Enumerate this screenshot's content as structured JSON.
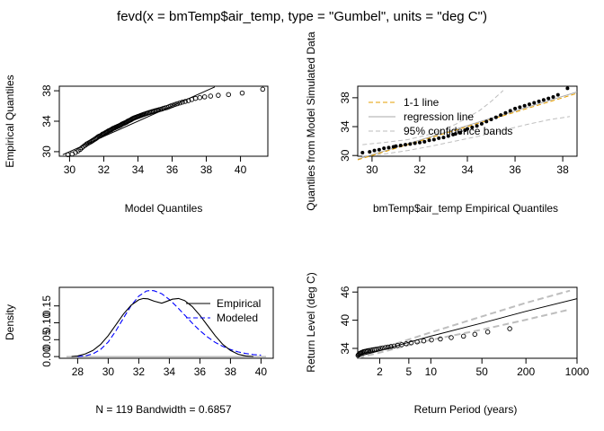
{
  "figure": {
    "title": "fevd(x = bmTemp$air_temp, type = \"Gumbel\", units = \"deg C\")"
  },
  "chart_data": [
    {
      "id": "qq1",
      "type": "scatter",
      "title": "",
      "xlabel": "Model Quantiles",
      "ylabel": "Empirical Quantiles",
      "xlim": [
        29.4,
        41.6
      ],
      "ylim": [
        29.4,
        38.6
      ],
      "xticks": [
        "30",
        "32",
        "34",
        "36",
        "38",
        "40"
      ],
      "yticks": [
        "30",
        "34",
        "38"
      ],
      "marker": "open-circle",
      "x": [
        29.9,
        30.15,
        30.35,
        30.5,
        30.62,
        30.72,
        30.82,
        30.92,
        31.0,
        31.08,
        31.16,
        31.24,
        31.31,
        31.38,
        31.45,
        31.52,
        31.58,
        31.64,
        31.7,
        31.76,
        31.82,
        31.88,
        31.93,
        31.99,
        32.04,
        32.1,
        32.15,
        32.2,
        32.25,
        32.3,
        32.35,
        32.4,
        32.45,
        32.5,
        32.55,
        32.6,
        32.65,
        32.7,
        32.75,
        32.8,
        32.85,
        32.9,
        32.95,
        33.0,
        33.05,
        33.1,
        33.15,
        33.2,
        33.25,
        33.3,
        33.35,
        33.4,
        33.45,
        33.5,
        33.55,
        33.6,
        33.65,
        33.7,
        33.75,
        33.8,
        33.86,
        33.92,
        33.98,
        34.04,
        34.1,
        34.16,
        34.22,
        34.28,
        34.34,
        34.4,
        34.47,
        34.54,
        34.61,
        34.68,
        34.75,
        34.82,
        34.9,
        34.98,
        35.06,
        35.14,
        35.22,
        35.31,
        35.4,
        35.5,
        35.6,
        35.7,
        35.81,
        35.92,
        36.04,
        36.17,
        36.3,
        36.45,
        36.6,
        36.77,
        36.95,
        37.15,
        37.37,
        37.62,
        37.9,
        38.25,
        38.7,
        39.3,
        40.1,
        41.3
      ],
      "y": [
        29.6,
        29.7,
        29.9,
        30.1,
        30.3,
        30.5,
        30.7,
        30.85,
        31.0,
        31.1,
        31.2,
        31.3,
        31.4,
        31.5,
        31.6,
        31.7,
        31.8,
        31.9,
        32.0,
        32.05,
        32.1,
        32.2,
        32.3,
        32.35,
        32.4,
        32.5,
        32.55,
        32.6,
        32.7,
        32.75,
        32.8,
        32.85,
        32.9,
        33.0,
        33.05,
        33.1,
        33.15,
        33.2,
        33.25,
        33.3,
        33.35,
        33.4,
        33.45,
        33.5,
        33.6,
        33.65,
        33.7,
        33.75,
        33.8,
        33.85,
        33.9,
        34.0,
        34.05,
        34.1,
        34.15,
        34.2,
        34.3,
        34.35,
        34.4,
        34.45,
        34.5,
        34.55,
        34.6,
        34.65,
        34.7,
        34.75,
        34.8,
        34.85,
        34.9,
        34.95,
        35.0,
        35.05,
        35.1,
        35.15,
        35.2,
        35.25,
        35.3,
        35.35,
        35.4,
        35.45,
        35.5,
        35.55,
        35.6,
        35.7,
        35.75,
        35.8,
        35.9,
        36.0,
        36.1,
        36.2,
        36.3,
        36.4,
        36.5,
        36.6,
        36.7,
        36.85,
        37.0,
        37.1,
        37.2,
        37.3,
        37.4,
        37.5,
        37.7,
        38.2
      ],
      "reference_line": {
        "x": [
          29.6,
          38.5
        ],
        "y": [
          29.6,
          38.5
        ]
      }
    },
    {
      "id": "qq2",
      "type": "scatter",
      "title": "",
      "xlabel": "bmTemp$air_temp Empirical Quantiles",
      "ylabel": "Quantiles from Model Simulated Data",
      "xlim": [
        29.4,
        38.6
      ],
      "ylim": [
        29.9,
        39.6
      ],
      "xticks": [
        "30",
        "32",
        "34",
        "36",
        "38"
      ],
      "yticks": [
        "30",
        "34",
        "38"
      ],
      "marker": "filled-circle",
      "legend": {
        "position": "top-left",
        "entries": [
          "1-1 line",
          "regression line",
          "95% confidence bands"
        ]
      },
      "x": [
        29.6,
        29.9,
        30.1,
        30.3,
        30.5,
        30.7,
        30.9,
        31.0,
        31.2,
        31.4,
        31.6,
        31.8,
        32.0,
        32.2,
        32.4,
        32.6,
        32.8,
        33.0,
        33.2,
        33.4,
        33.5,
        33.7,
        33.9,
        34.0,
        34.2,
        34.4,
        34.6,
        34.8,
        35.0,
        35.2,
        35.4,
        35.6,
        35.8,
        36.0,
        36.2,
        36.4,
        36.6,
        36.8,
        37.0,
        37.2,
        37.4,
        37.6,
        37.8,
        38.2
      ],
      "y": [
        30.4,
        30.5,
        30.7,
        30.8,
        31.0,
        31.1,
        31.2,
        31.3,
        31.4,
        31.5,
        31.6,
        31.7,
        31.8,
        31.9,
        32.1,
        32.2,
        32.4,
        32.5,
        32.7,
        32.9,
        33.0,
        33.2,
        33.5,
        33.7,
        33.9,
        34.1,
        34.4,
        34.7,
        35.0,
        35.3,
        35.6,
        35.9,
        36.2,
        36.5,
        36.7,
        36.9,
        37.1,
        37.3,
        37.5,
        37.7,
        37.9,
        38.1,
        38.4,
        39.3
      ],
      "one_to_one_line": {
        "x": [
          29.4,
          38.6
        ],
        "y": [
          29.4,
          38.6
        ]
      },
      "regression_line": {
        "x": [
          29.4,
          38.6
        ],
        "y": [
          29.5,
          38.8
        ]
      },
      "confidence_upper": {
        "x": [
          29.6,
          30.5,
          31.5,
          32.5,
          33.5,
          34.5,
          35.0,
          35.5
        ],
        "y": [
          31.5,
          31.8,
          32.2,
          33.0,
          34.3,
          36.2,
          37.5,
          39.0
        ]
      },
      "confidence_lower": {
        "x": [
          29.6,
          30.5,
          31.5,
          32.5,
          33.5,
          34.5,
          35.5,
          36.5,
          37.5,
          38.3
        ],
        "y": [
          29.9,
          30.2,
          30.7,
          31.3,
          32.0,
          32.7,
          33.5,
          34.3,
          35.0,
          35.4
        ]
      }
    },
    {
      "id": "density",
      "type": "line",
      "title": "",
      "xlabel": "N = 119   Bandwidth = 0.6857",
      "ylabel": "Density",
      "xlim": [
        26.8,
        40.8
      ],
      "ylim": [
        -0.005,
        0.205
      ],
      "xticks": [
        "28",
        "30",
        "32",
        "34",
        "36",
        "38",
        "40"
      ],
      "yticks": [
        "0.00",
        "0.05",
        "0.10",
        "0.15"
      ],
      "legend": {
        "position": "top-right",
        "entries": [
          "Empirical",
          "Modeled"
        ]
      },
      "series": [
        {
          "name": "Empirical",
          "style": "solid",
          "x": [
            27.6,
            28.0,
            28.5,
            29.0,
            29.5,
            30.0,
            30.5,
            31.0,
            31.5,
            32.0,
            32.3,
            32.6,
            33.0,
            33.5,
            33.8,
            34.2,
            34.6,
            35.0,
            35.5,
            36.0,
            36.5,
            37.0,
            37.5,
            38.0,
            38.5,
            39.0,
            39.5
          ],
          "y": [
            0.0,
            0.002,
            0.008,
            0.018,
            0.036,
            0.062,
            0.094,
            0.126,
            0.152,
            0.168,
            0.172,
            0.171,
            0.164,
            0.158,
            0.163,
            0.17,
            0.172,
            0.166,
            0.148,
            0.122,
            0.092,
            0.062,
            0.036,
            0.018,
            0.007,
            0.002,
            0.0
          ]
        },
        {
          "name": "Modeled",
          "style": "dashed",
          "x": [
            28.0,
            28.5,
            29.0,
            29.5,
            30.0,
            30.5,
            31.0,
            31.5,
            32.0,
            32.5,
            32.8,
            33.0,
            33.5,
            34.0,
            34.5,
            35.0,
            35.5,
            36.0,
            36.5,
            37.0,
            37.5,
            38.0,
            38.5,
            39.0,
            39.5,
            40.0
          ],
          "y": [
            0.0,
            0.002,
            0.008,
            0.021,
            0.043,
            0.076,
            0.114,
            0.151,
            0.179,
            0.194,
            0.196,
            0.195,
            0.186,
            0.169,
            0.147,
            0.123,
            0.099,
            0.077,
            0.058,
            0.042,
            0.03,
            0.021,
            0.014,
            0.009,
            0.006,
            0.004
          ]
        }
      ]
    },
    {
      "id": "return_level",
      "type": "scatter",
      "title": "",
      "xlabel": "Return Period (years)",
      "ylabel": "Return Level (deg C)",
      "x_scale": "log",
      "xlim": [
        1.0,
        1000
      ],
      "ylim": [
        31.9,
        47.0
      ],
      "xticks": [
        "2",
        "5",
        "10",
        "50",
        "200",
        "1000"
      ],
      "yticks": [
        "34",
        "40",
        "46"
      ],
      "marker": "open-circle",
      "return_period": [
        1.01,
        1.03,
        1.06,
        1.09,
        1.12,
        1.16,
        1.2,
        1.25,
        1.3,
        1.36,
        1.42,
        1.5,
        1.58,
        1.67,
        1.77,
        1.9,
        2.04,
        2.2,
        2.4,
        2.6,
        2.85,
        3.15,
        3.5,
        4.0,
        4.6,
        5.4,
        6.5,
        8.0,
        10.2,
        13.5,
        19,
        28,
        40,
        60,
        120
      ],
      "observed_level": [
        32.5,
        32.7,
        32.9,
        33.0,
        33.1,
        33.2,
        33.3,
        33.35,
        33.4,
        33.5,
        33.55,
        33.6,
        33.7,
        33.75,
        33.8,
        33.9,
        34.0,
        34.1,
        34.2,
        34.3,
        34.4,
        34.5,
        34.65,
        34.8,
        35.0,
        35.2,
        35.4,
        35.6,
        35.8,
        36.0,
        36.3,
        36.6,
        37.0,
        37.5,
        38.2
      ],
      "fitted_line": {
        "return_period": [
          1.01,
          2,
          5,
          10,
          50,
          200,
          1000
        ],
        "level": [
          32.3,
          33.5,
          35.3,
          36.6,
          39.4,
          41.9,
          44.6
        ]
      },
      "ci_upper": {
        "return_period": [
          1.01,
          2,
          5,
          10,
          50,
          200,
          800
        ],
        "level": [
          32.5,
          33.9,
          35.9,
          37.4,
          40.8,
          43.7,
          46.3
        ]
      },
      "ci_lower": {
        "return_period": [
          1.01,
          2,
          5,
          10,
          50,
          200,
          800
        ],
        "level": [
          32.0,
          33.1,
          34.7,
          35.8,
          38.0,
          40.1,
          42.3
        ]
      }
    }
  ],
  "colors": {
    "axes": "#000000",
    "one_to_one": "#e69f00",
    "regression": "#a9a9a9",
    "confidence": "#bebebe",
    "modeled": "#0000ff",
    "background": "#ffffff"
  }
}
